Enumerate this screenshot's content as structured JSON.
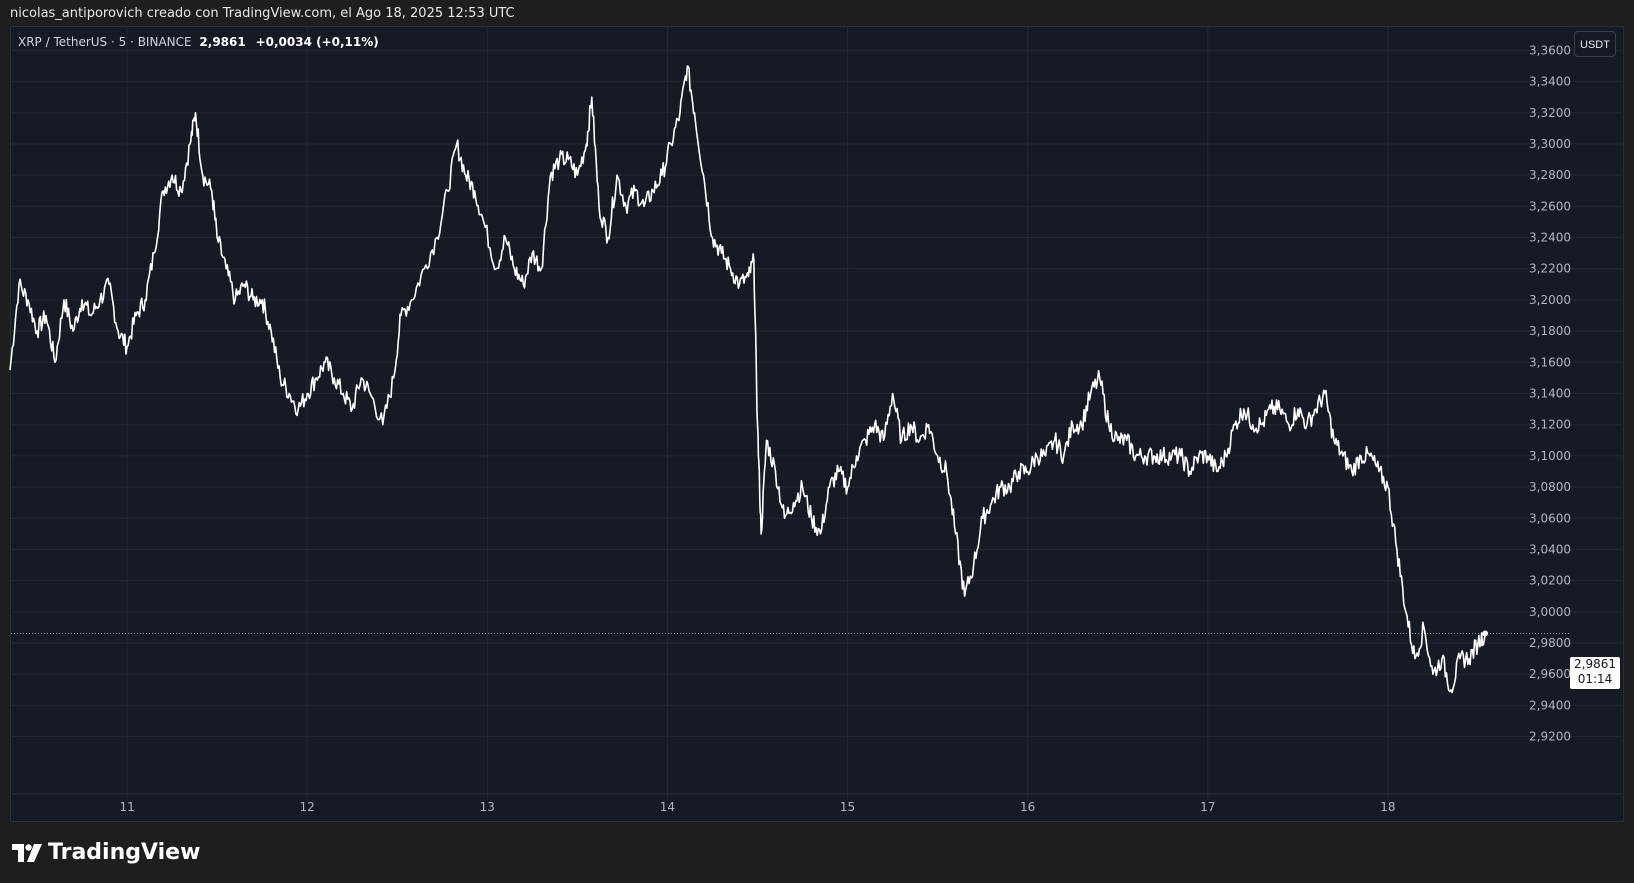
{
  "header": {
    "attribution": "nicolas_antiporovich creado con TradingView.com, el Ago 18, 2025 12:53 UTC"
  },
  "symbol": {
    "name": "XRP / TetherUS · 5 · BINANCE",
    "price": "2,9861",
    "change": "+0,0034 (+0,11%)"
  },
  "currency_button": "USDT",
  "price_tag": {
    "value": "2,9861",
    "countdown": "01:14"
  },
  "logo": {
    "text": "TradingView"
  },
  "colors": {
    "background": "#161a25",
    "line": "#ffffff",
    "grid": "#222733",
    "price_line": "#9598a1"
  },
  "chart_data": {
    "type": "line",
    "title": "",
    "xlabel": "",
    "ylabel": "",
    "x_ticks": [
      "11",
      "12",
      "13",
      "14",
      "15",
      "16",
      "17",
      "18"
    ],
    "x_range_days": [
      10.35,
      18.65
    ],
    "ylim": [
      2.905,
      3.375
    ],
    "y_ticks": [
      "2,9200",
      "2,9400",
      "2,9600",
      "2,9800",
      "3,0000",
      "3,0200",
      "3,0400",
      "3,0600",
      "3,0800",
      "3,1000",
      "3,1200",
      "3,1400",
      "3,1600",
      "3,1800",
      "3,2000",
      "3,2200",
      "3,2400",
      "3,2600",
      "3,2800",
      "3,3000",
      "3,3200",
      "3,3400",
      "3,3600"
    ],
    "grid": true,
    "current_price": 2.9861,
    "series": [
      {
        "name": "",
        "points": [
          [
            10.35,
            3.155
          ],
          [
            10.4,
            3.21
          ],
          [
            10.45,
            3.2
          ],
          [
            10.5,
            3.18
          ],
          [
            10.55,
            3.19
          ],
          [
            10.6,
            3.16
          ],
          [
            10.65,
            3.2
          ],
          [
            10.7,
            3.18
          ],
          [
            10.75,
            3.2
          ],
          [
            10.8,
            3.19
          ],
          [
            10.85,
            3.2
          ],
          [
            10.9,
            3.21
          ],
          [
            10.95,
            3.18
          ],
          [
            11.0,
            3.17
          ],
          [
            11.05,
            3.19
          ],
          [
            11.1,
            3.2
          ],
          [
            11.15,
            3.23
          ],
          [
            11.2,
            3.27
          ],
          [
            11.25,
            3.28
          ],
          [
            11.3,
            3.27
          ],
          [
            11.35,
            3.3
          ],
          [
            11.38,
            3.32
          ],
          [
            11.42,
            3.28
          ],
          [
            11.47,
            3.27
          ],
          [
            11.5,
            3.24
          ],
          [
            11.55,
            3.22
          ],
          [
            11.6,
            3.2
          ],
          [
            11.65,
            3.21
          ],
          [
            11.7,
            3.2
          ],
          [
            11.75,
            3.2
          ],
          [
            11.8,
            3.18
          ],
          [
            11.85,
            3.15
          ],
          [
            11.9,
            3.14
          ],
          [
            11.95,
            3.13
          ],
          [
            12.0,
            3.14
          ],
          [
            12.05,
            3.15
          ],
          [
            12.1,
            3.16
          ],
          [
            12.15,
            3.15
          ],
          [
            12.2,
            3.14
          ],
          [
            12.25,
            3.13
          ],
          [
            12.3,
            3.15
          ],
          [
            12.35,
            3.14
          ],
          [
            12.42,
            3.12
          ],
          [
            12.48,
            3.15
          ],
          [
            12.52,
            3.19
          ],
          [
            12.58,
            3.2
          ],
          [
            12.65,
            3.22
          ],
          [
            12.72,
            3.24
          ],
          [
            12.78,
            3.27
          ],
          [
            12.83,
            3.3
          ],
          [
            12.88,
            3.28
          ],
          [
            12.93,
            3.27
          ],
          [
            12.98,
            3.25
          ],
          [
            13.05,
            3.22
          ],
          [
            13.1,
            3.24
          ],
          [
            13.15,
            3.22
          ],
          [
            13.2,
            3.21
          ],
          [
            13.25,
            3.23
          ],
          [
            13.3,
            3.22
          ],
          [
            13.35,
            3.28
          ],
          [
            13.4,
            3.29
          ],
          [
            13.45,
            3.29
          ],
          [
            13.5,
            3.28
          ],
          [
            13.55,
            3.3
          ],
          [
            13.58,
            3.33
          ],
          [
            13.62,
            3.26
          ],
          [
            13.67,
            3.24
          ],
          [
            13.72,
            3.28
          ],
          [
            13.77,
            3.26
          ],
          [
            13.82,
            3.27
          ],
          [
            13.87,
            3.26
          ],
          [
            13.92,
            3.27
          ],
          [
            13.97,
            3.28
          ],
          [
            14.02,
            3.3
          ],
          [
            14.07,
            3.32
          ],
          [
            14.11,
            3.35
          ],
          [
            14.15,
            3.32
          ],
          [
            14.2,
            3.28
          ],
          [
            14.25,
            3.24
          ],
          [
            14.3,
            3.23
          ],
          [
            14.35,
            3.22
          ],
          [
            14.4,
            3.21
          ],
          [
            14.45,
            3.215
          ],
          [
            14.48,
            3.225
          ],
          [
            14.5,
            3.12
          ],
          [
            14.52,
            3.05
          ],
          [
            14.55,
            3.11
          ],
          [
            14.6,
            3.09
          ],
          [
            14.65,
            3.06
          ],
          [
            14.7,
            3.07
          ],
          [
            14.75,
            3.08
          ],
          [
            14.8,
            3.06
          ],
          [
            14.85,
            3.05
          ],
          [
            14.9,
            3.08
          ],
          [
            14.95,
            3.09
          ],
          [
            15.0,
            3.08
          ],
          [
            15.05,
            3.1
          ],
          [
            15.1,
            3.11
          ],
          [
            15.15,
            3.12
          ],
          [
            15.2,
            3.11
          ],
          [
            15.25,
            3.14
          ],
          [
            15.3,
            3.11
          ],
          [
            15.35,
            3.12
          ],
          [
            15.4,
            3.11
          ],
          [
            15.45,
            3.12
          ],
          [
            15.5,
            3.1
          ],
          [
            15.55,
            3.09
          ],
          [
            15.6,
            3.05
          ],
          [
            15.65,
            3.01
          ],
          [
            15.7,
            3.03
          ],
          [
            15.75,
            3.06
          ],
          [
            15.8,
            3.07
          ],
          [
            15.85,
            3.08
          ],
          [
            15.9,
            3.08
          ],
          [
            15.95,
            3.09
          ],
          [
            16.0,
            3.09
          ],
          [
            16.05,
            3.1
          ],
          [
            16.1,
            3.1
          ],
          [
            16.15,
            3.11
          ],
          [
            16.2,
            3.1
          ],
          [
            16.25,
            3.12
          ],
          [
            16.3,
            3.12
          ],
          [
            16.35,
            3.14
          ],
          [
            16.4,
            3.15
          ],
          [
            16.45,
            3.12
          ],
          [
            16.5,
            3.11
          ],
          [
            16.55,
            3.11
          ],
          [
            16.6,
            3.1
          ],
          [
            16.65,
            3.1
          ],
          [
            16.7,
            3.1
          ],
          [
            16.75,
            3.1
          ],
          [
            16.8,
            3.1
          ],
          [
            16.85,
            3.1
          ],
          [
            16.9,
            3.09
          ],
          [
            16.95,
            3.1
          ],
          [
            17.0,
            3.1
          ],
          [
            17.05,
            3.09
          ],
          [
            17.1,
            3.1
          ],
          [
            17.15,
            3.12
          ],
          [
            17.2,
            3.13
          ],
          [
            17.25,
            3.12
          ],
          [
            17.3,
            3.12
          ],
          [
            17.35,
            3.13
          ],
          [
            17.4,
            3.13
          ],
          [
            17.45,
            3.12
          ],
          [
            17.5,
            3.13
          ],
          [
            17.55,
            3.12
          ],
          [
            17.6,
            3.13
          ],
          [
            17.65,
            3.14
          ],
          [
            17.7,
            3.11
          ],
          [
            17.75,
            3.1
          ],
          [
            17.8,
            3.09
          ],
          [
            17.85,
            3.1
          ],
          [
            17.9,
            3.1
          ],
          [
            17.95,
            3.09
          ],
          [
            18.0,
            3.08
          ],
          [
            18.05,
            3.04
          ],
          [
            18.1,
            3.0
          ],
          [
            18.15,
            2.97
          ],
          [
            18.2,
            2.99
          ],
          [
            18.25,
            2.96
          ],
          [
            18.3,
            2.97
          ],
          [
            18.35,
            2.95
          ],
          [
            18.4,
            2.97
          ],
          [
            18.45,
            2.97
          ],
          [
            18.5,
            2.98
          ],
          [
            18.54,
            2.9861
          ]
        ]
      }
    ]
  }
}
